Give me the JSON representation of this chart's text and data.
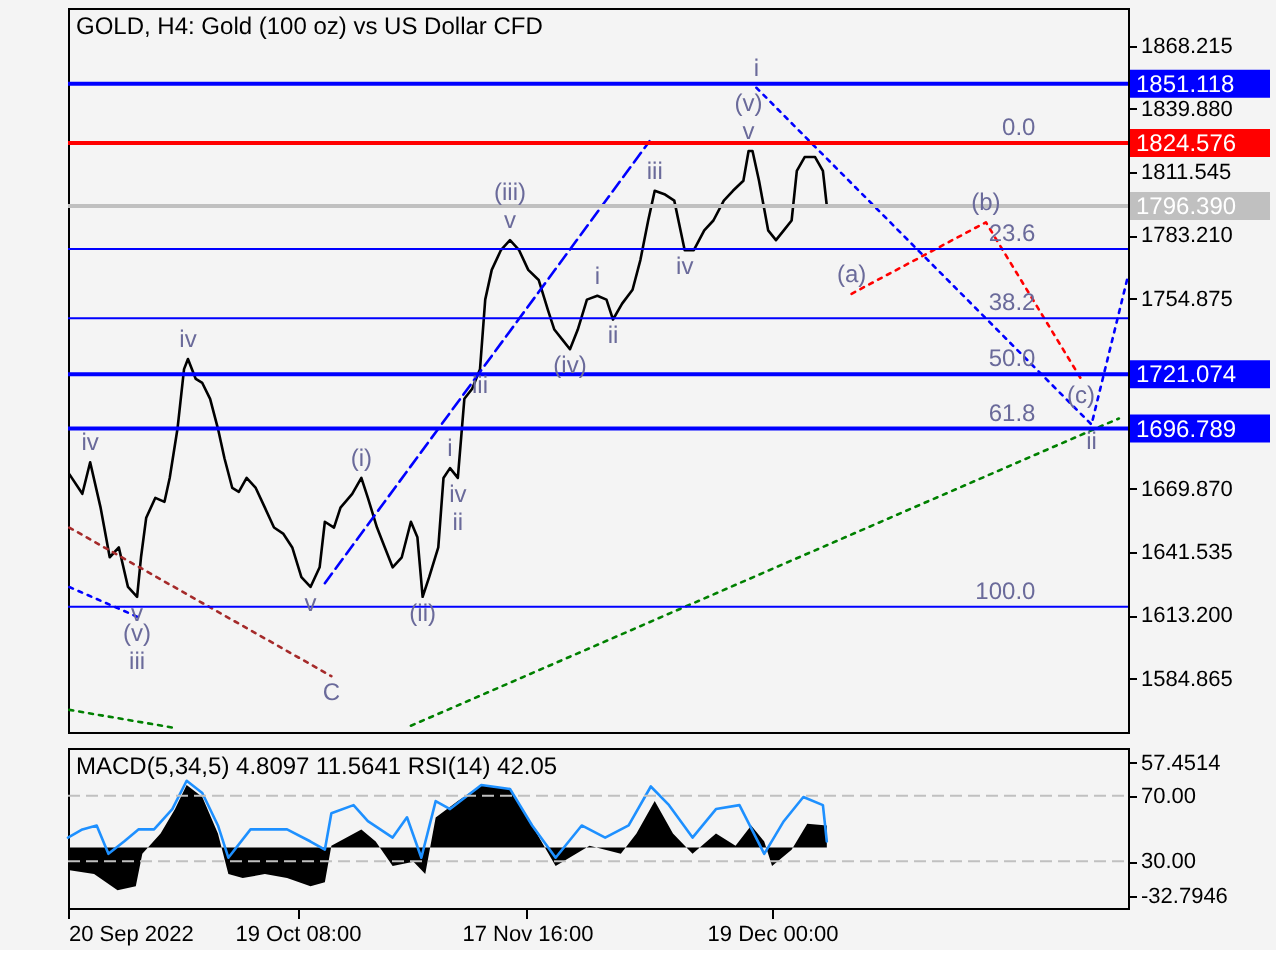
{
  "chart_data": [
    {
      "type": "line",
      "title": "GOLD, H4:  Gold (100 oz) vs US Dollar CFD",
      "xlim": [
        "2022-09-20T00:00",
        "2023-02-02T12:00"
      ],
      "tick_labels": "y",
      "ylim": [
        1561,
        1885
      ],
      "yticks": [
        1868.215,
        {
          "value": 1839.88,
          "label": "1839.880"
        },
        1811.545,
        {
          "value": 1783.21,
          "label": "1783.210"
        },
        1754.875,
        {
          "value": 1669.87,
          "label": "1669.870"
        },
        1641.535,
        {
          "value": 1613.2,
          "label": "1613.200"
        },
        1584.865
      ],
      "x": [
        "2022-09-20T04:00",
        "2022-09-21T20:00",
        "2022-09-22T20:00",
        "2022-09-24T04:00",
        "2022-09-25T08:00",
        "2022-09-26T12:00",
        "2022-09-27T16:00",
        "2022-09-28T20:00",
        "2022-09-29T08:00",
        "2022-09-30T00:00",
        "2022-10-01T04:00",
        "2022-10-02T08:00",
        "2022-10-03T00:00",
        "2022-10-04T00:00",
        "2022-10-04T20:00",
        "2022-10-05T08:00",
        "2022-10-06T08:00",
        "2022-10-07T04:00",
        "2022-10-08T04:00",
        "2022-10-09T04:00",
        "2022-10-10T00:00",
        "2022-10-11T00:00",
        "2022-10-11T20:00",
        "2022-10-12T20:00",
        "2022-10-14T00:00",
        "2022-10-15T04:00",
        "2022-10-16T08:00",
        "2022-10-17T12:00",
        "2022-10-18T16:00",
        "2022-10-19T20:00",
        "2022-10-21T00:00",
        "2022-10-22T04:00",
        "2022-10-22T20:00",
        "2022-10-24T00:00",
        "2022-10-24T20:00",
        "2022-10-26T08:00",
        "2022-10-27T12:00",
        "2022-10-28T08:00",
        "2022-10-29T12:00",
        "2022-10-30T12:00",
        "2022-10-31T12:00",
        "2022-11-01T16:00",
        "2022-11-02T20:00",
        "2022-11-03T16:00",
        "2022-11-04T08:00",
        "2022-11-05T04:00",
        "2022-11-06T08:00",
        "2022-11-07T00:00",
        "2022-11-07T20:00",
        "2022-11-08T20:00",
        "2022-11-09T16:00",
        "2022-11-10T16:00",
        "2022-11-11T16:00",
        "2022-11-12T08:00",
        "2022-11-13T04:00",
        "2022-11-14T08:00",
        "2022-11-15T12:00",
        "2022-11-16T16:00",
        "2022-11-17T20:00",
        "2022-11-19T04:00",
        "2022-11-20T08:00",
        "2022-11-21T04:00",
        "2022-11-22T04:00",
        "2022-11-23T04:00",
        "2022-11-24T04:00",
        "2022-11-25T08:00",
        "2022-11-26T16:00",
        "2022-11-27T20:00",
        "2022-11-28T16:00",
        "2022-11-29T20:00",
        "2022-12-01T04:00",
        "2022-12-02T04:00",
        "2022-12-03T04:00",
        "2022-12-04T00:00",
        "2022-12-05T08:00",
        "2022-12-06T12:00",
        "2022-12-07T20:00",
        "2022-12-09T00:00",
        "2022-12-10T08:00",
        "2022-12-11T12:00",
        "2022-12-12T20:00",
        "2022-12-14T00:00",
        "2022-12-15T08:00",
        "2022-12-16T00:00",
        "2022-12-16T12:00",
        "2022-12-17T08:00",
        "2022-12-18T12:00",
        "2022-12-19T12:00",
        "2022-12-20T12:00",
        "2022-12-21T12:00",
        "2022-12-22T04:00",
        "2022-12-23T04:00",
        "2022-12-24T12:00",
        "2022-12-25T12:00",
        "2022-12-26T00:00"
      ],
      "series": [
        {
          "color": "#000000",
          "values": [
            1676.4,
            1667.6,
            1681.7,
            1661.4,
            1639.2,
            1643.6,
            1625.9,
            1621.5,
            1639.2,
            1656.9,
            1665.8,
            1664.0,
            1674.7,
            1696.8,
            1723.4,
            1727.9,
            1719.0,
            1717.2,
            1710.1,
            1696.8,
            1683.5,
            1670.2,
            1668.5,
            1674.7,
            1670.2,
            1661.4,
            1652.5,
            1649.8,
            1643.6,
            1630.3,
            1625.9,
            1634.7,
            1655.1,
            1652.5,
            1661.4,
            1667.6,
            1674.7,
            1665.8,
            1652.5,
            1643.6,
            1634.7,
            1639.2,
            1655.1,
            1648.1,
            1621.5,
            1630.3,
            1643.6,
            1674.7,
            1679.1,
            1674.7,
            1710.1,
            1714.6,
            1723.4,
            1754.5,
            1767.8,
            1776.6,
            1781.1,
            1776.6,
            1767.8,
            1763.3,
            1750.0,
            1741.1,
            1736.7,
            1732.3,
            1741.1,
            1754.5,
            1756.2,
            1754.5,
            1745.6,
            1752.7,
            1758.9,
            1772.2,
            1789.9,
            1803.2,
            1801.5,
            1798.8,
            1776.6,
            1776.6,
            1785.5,
            1789.9,
            1798.8,
            1803.2,
            1807.7,
            1821.0,
            1821.0,
            1807.7,
            1785.5,
            1781.1,
            1785.5,
            1789.9,
            1812.1,
            1818.3,
            1818.3,
            1812.1,
            1796.4
          ]
        },
        {
          "type": "line",
          "line_style": "dotted",
          "color": "#008000",
          "x": [
            "2022-11-02T20:00",
            "2023-02-01T08:00"
          ],
          "values": [
            1563.8,
            1701.3
          ]
        },
        {
          "type": "line",
          "line_style": "dotted",
          "color": "#008000",
          "x": [
            "2022-09-20T04:00",
            "2022-10-03T12:00"
          ],
          "values": [
            1570.9,
            1562.9
          ]
        },
        {
          "type": "line",
          "line_style": "dotted",
          "color": "#0000ff",
          "x": [
            "2022-12-17T00:00",
            "2023-01-28T20:00",
            "2023-02-02T12:00"
          ],
          "values": [
            1849.3,
            1698.6,
            1765.1
          ]
        },
        {
          "type": "line",
          "line_style": "dotted",
          "color": "#ff0000",
          "x": [
            "2022-12-29T04:00",
            "2023-01-15T08:00",
            "2023-01-27T12:00"
          ],
          "values": [
            1757.1,
            1789.1,
            1719.0
          ]
        },
        {
          "type": "line",
          "line_style": "dotted",
          "color": "#a52a2a",
          "x": [
            "2022-09-20T04:00",
            "2022-10-23T16:00"
          ],
          "values": [
            1652.5,
            1586.0
          ]
        },
        {
          "type": "line",
          "line_style": "dashed",
          "color": "#0000ff",
          "x": [
            "2022-10-22T20:00",
            "2022-12-03T08:00"
          ],
          "values": [
            1627.6,
            1825.4
          ]
        },
        {
          "type": "line",
          "line_style": "dotted",
          "color": "#0000ff",
          "x": [
            "2022-09-20T04:00",
            "2022-09-28T20:00"
          ],
          "values": [
            1625.9,
            1612.6
          ]
        }
      ],
      "ref_lines": [
        {
          "axis": "y",
          "value": 1851.118,
          "label": "1851.118",
          "color": "#0000ff"
        },
        {
          "axis": "y",
          "value": 1824.576,
          "label": "1824.576",
          "color": "#ff0000"
        },
        {
          "axis": "y",
          "value": 1796.39,
          "label": "1796.390",
          "color": "#c0c0c0"
        },
        {
          "axis": "y",
          "value": 1777.1,
          "color": "#0000ff"
        },
        {
          "axis": "y",
          "value": 1746.2,
          "color": "#0000ff"
        },
        {
          "axis": "y",
          "value": 1721.074,
          "label": "1721.074",
          "color": "#0000ff"
        },
        {
          "axis": "y",
          "value": 1696.789,
          "label": "1696.789",
          "color": "#0000ff"
        },
        {
          "axis": "y",
          "value": 1617.0,
          "color": "#0000ff"
        }
      ],
      "annotations": [
        {
          "text": "0.0",
          "x": "2023-01-21T16:00",
          "y": 1824.576
        },
        {
          "text": "23.6",
          "x": "2023-01-21T16:00",
          "y": 1777.1
        },
        {
          "text": "38.2",
          "x": "2023-01-21T16:00",
          "y": 1746.2
        },
        {
          "text": "50.0",
          "x": "2023-01-21T16:00",
          "y": 1721.074
        },
        {
          "text": "61.8",
          "x": "2023-01-21T16:00",
          "y": 1696.789
        },
        {
          "text": "100.0",
          "x": "2023-01-21T16:00",
          "y": 1617.0
        },
        {
          "text": "iv",
          "x": "2022-09-22T20:00",
          "y": 1681.7
        },
        {
          "text": "iv",
          "x": "2022-10-05T08:00",
          "y": 1727.9
        },
        {
          "text": "v",
          "x": "2022-09-28T20:00",
          "y": 1621.5
        },
        {
          "text": "(v)",
          "x": "2022-09-28T20:00",
          "y": 1612.6
        },
        {
          "text": "iii",
          "x": "2022-09-28T20:00",
          "y": 1612.6
        },
        {
          "text": "v",
          "x": "2022-10-21T00:00",
          "y": 1625.9
        },
        {
          "text": "C",
          "x": "2022-10-23T16:00",
          "y": 1586.0
        },
        {
          "text": "(i)",
          "x": "2022-10-27T12:00",
          "y": 1674.7
        },
        {
          "text": "(ii)",
          "x": "2022-11-04T08:00",
          "y": 1621.5
        },
        {
          "text": "i",
          "x": "2022-11-07T20:00",
          "y": 1679.1
        },
        {
          "text": "iv",
          "x": "2022-11-08T20:00",
          "y": 1674.7
        },
        {
          "text": "ii",
          "x": "2022-11-08T20:00",
          "y": 1674.7
        },
        {
          "text": "iii",
          "x": "2022-11-11T16:00",
          "y": 1723.4
        },
        {
          "text": "v",
          "x": "2022-11-15T12:00",
          "y": 1781.1
        },
        {
          "text": "(iii)",
          "x": "2022-11-15T12:00",
          "y": 1781.1
        },
        {
          "text": "(iv)",
          "x": "2022-11-23T04:00",
          "y": 1732.3
        },
        {
          "text": "i",
          "x": "2022-11-26T16:00",
          "y": 1756.2
        },
        {
          "text": "ii",
          "x": "2022-11-28T16:00",
          "y": 1745.6
        },
        {
          "text": "iii",
          "x": "2022-12-04T00:00",
          "y": 1803.2
        },
        {
          "text": "iv",
          "x": "2022-12-07T20:00",
          "y": 1776.6
        },
        {
          "text": "v",
          "x": "2022-12-16T00:00",
          "y": 1821.0
        },
        {
          "text": "(v)",
          "x": "2022-12-16T00:00",
          "y": 1821.0
        },
        {
          "text": "i",
          "x": "2022-12-17T00:00",
          "y": 1849.3
        },
        {
          "text": "(a)",
          "x": "2022-12-29T04:00",
          "y": 1757.1
        },
        {
          "text": "(b)",
          "x": "2023-01-15T08:00",
          "y": 1789.1
        },
        {
          "text": "(c)",
          "x": "2023-01-27T12:00",
          "y": 1719.0
        },
        {
          "text": "ii",
          "x": "2023-01-28T20:00",
          "y": 1698.6
        }
      ]
    },
    {
      "type": "area",
      "title": "MACD(5,34,5) 4.8097 11.5641 RSI(14) 42.05",
      "xlim": [
        "2022-09-20T00:00",
        "2023-02-02T12:00"
      ],
      "xticks": [
        {
          "value": "2022-09-20T00:00",
          "label": "20 Sep 2022"
        },
        {
          "value": "2022-10-19T08:00",
          "label": "19 Oct 08:00"
        },
        {
          "value": "2022-11-17T16:00",
          "label": "17 Nov 16:00"
        },
        {
          "value": "2022-12-19T00:00",
          "label": "19 Dec 00:00"
        }
      ],
      "ylim": [
        -41.0,
        67.6
      ],
      "yticks": [
        57.4514,
        -32.7946
      ],
      "y2lim": [
        1.4,
        99.1
      ],
      "y2ticks": [
        {
          "value": 70,
          "label": "70.00"
        },
        {
          "value": 30,
          "label": "30.00"
        }
      ],
      "series": [
        {
          "color": "#000000",
          "x": [
            "2022-09-20T00:00",
            "2022-09-23T08:00",
            "2022-09-26T08:00",
            "2022-09-28T16:00",
            "2022-09-29T12:00",
            "2022-10-01T20:00",
            "2022-10-03T16:00",
            "2022-10-05T04:00",
            "2022-10-07T04:00",
            "2022-10-09T04:00",
            "2022-10-10T12:00",
            "2022-10-12T08:00",
            "2022-10-15T04:00",
            "2022-10-18T00:00",
            "2022-10-21T00:00",
            "2022-10-22T20:00",
            "2022-10-23T16:00",
            "2022-10-27T12:00",
            "2022-10-29T08:00",
            "2022-10-31T12:00",
            "2022-11-03T04:00",
            "2022-11-04T16:00",
            "2022-11-06T00:00",
            "2022-11-08T20:00",
            "2022-11-11T20:00",
            "2022-11-15T12:00",
            "2022-11-18T08:00",
            "2022-11-21T08:00",
            "2022-11-25T16:00",
            "2022-11-29T16:00",
            "2022-12-01T16:00",
            "2022-12-04T00:00",
            "2022-12-06T08:00",
            "2022-12-08T20:00",
            "2022-12-11T20:00",
            "2022-12-14T08:00",
            "2022-12-16T08:00",
            "2022-12-18T00:00",
            "2022-12-19T00:00",
            "2022-12-21T12:00",
            "2022-12-23T12:00",
            "2022-12-26T00:00"
          ],
          "values": [
            -15.2,
            -18.0,
            -28.9,
            -26.2,
            -4.2,
            9.5,
            26.1,
            42.5,
            34.3,
            9.5,
            -18.0,
            -20.7,
            -18.0,
            -20.7,
            -26.2,
            -23.5,
            1.3,
            12.3,
            4.1,
            -12.5,
            -9.6,
            -18.0,
            20.5,
            31.6,
            42.5,
            39.8,
            15.0,
            -12.5,
            1.3,
            -4.2,
            9.5,
            31.6,
            9.5,
            -4.2,
            9.5,
            1.3,
            15.0,
            4.1,
            -12.5,
            -1.4,
            16.1,
            15.0
          ]
        },
        {
          "type": "line",
          "axis": "y2",
          "color": "#1e90ff",
          "x": [
            "2022-09-20T00:00",
            "2022-09-21T20:00",
            "2022-09-23T16:00",
            "2022-09-25T04:00",
            "2022-09-27T04:00",
            "2022-09-29T00:00",
            "2022-10-01T00:00",
            "2022-10-03T08:00",
            "2022-10-05T04:00",
            "2022-10-07T04:00",
            "2022-10-09T04:00",
            "2022-10-10T12:00",
            "2022-10-13T08:00",
            "2022-10-16T00:00",
            "2022-10-18T00:00",
            "2022-10-21T00:00",
            "2022-10-22T20:00",
            "2022-10-23T16:00",
            "2022-10-26T12:00",
            "2022-10-28T08:00",
            "2022-10-31T12:00",
            "2022-11-02T08:00",
            "2022-11-04T04:00",
            "2022-11-06T00:00",
            "2022-11-07T20:00",
            "2022-11-11T20:00",
            "2022-11-15T12:00",
            "2022-11-18T08:00",
            "2022-11-21T08:00",
            "2022-11-24T16:00",
            "2022-11-27T16:00",
            "2022-11-30T16:00",
            "2022-12-03T12:00",
            "2022-12-05T20:00",
            "2022-12-08T20:00",
            "2022-12-11T20:00",
            "2022-12-14T20:00",
            "2022-12-18T00:00",
            "2022-12-20T12:00",
            "2022-12-23T00:00",
            "2022-12-25T12:00",
            "2022-12-26T00:00"
          ],
          "values": [
            44.4,
            49.4,
            51.8,
            34.5,
            42.0,
            49.4,
            49.4,
            61.8,
            79.1,
            71.6,
            51.8,
            32.1,
            49.4,
            49.4,
            49.4,
            42.0,
            37.0,
            59.2,
            64.2,
            54.4,
            44.4,
            56.8,
            32.1,
            66.7,
            61.8,
            76.5,
            74.1,
            51.8,
            32.1,
            51.8,
            44.4,
            51.8,
            75.6,
            64.2,
            44.4,
            61.8,
            64.2,
            34.5,
            54.4,
            69.2,
            64.2,
            42.0
          ]
        }
      ],
      "ref_lines": [
        {
          "axis": "y2",
          "value": 70,
          "color": "#c0c0c0",
          "line_style": "dashed"
        },
        {
          "axis": "y2",
          "value": 30,
          "color": "#c0c0c0",
          "line_style": "dashed"
        }
      ]
    }
  ]
}
